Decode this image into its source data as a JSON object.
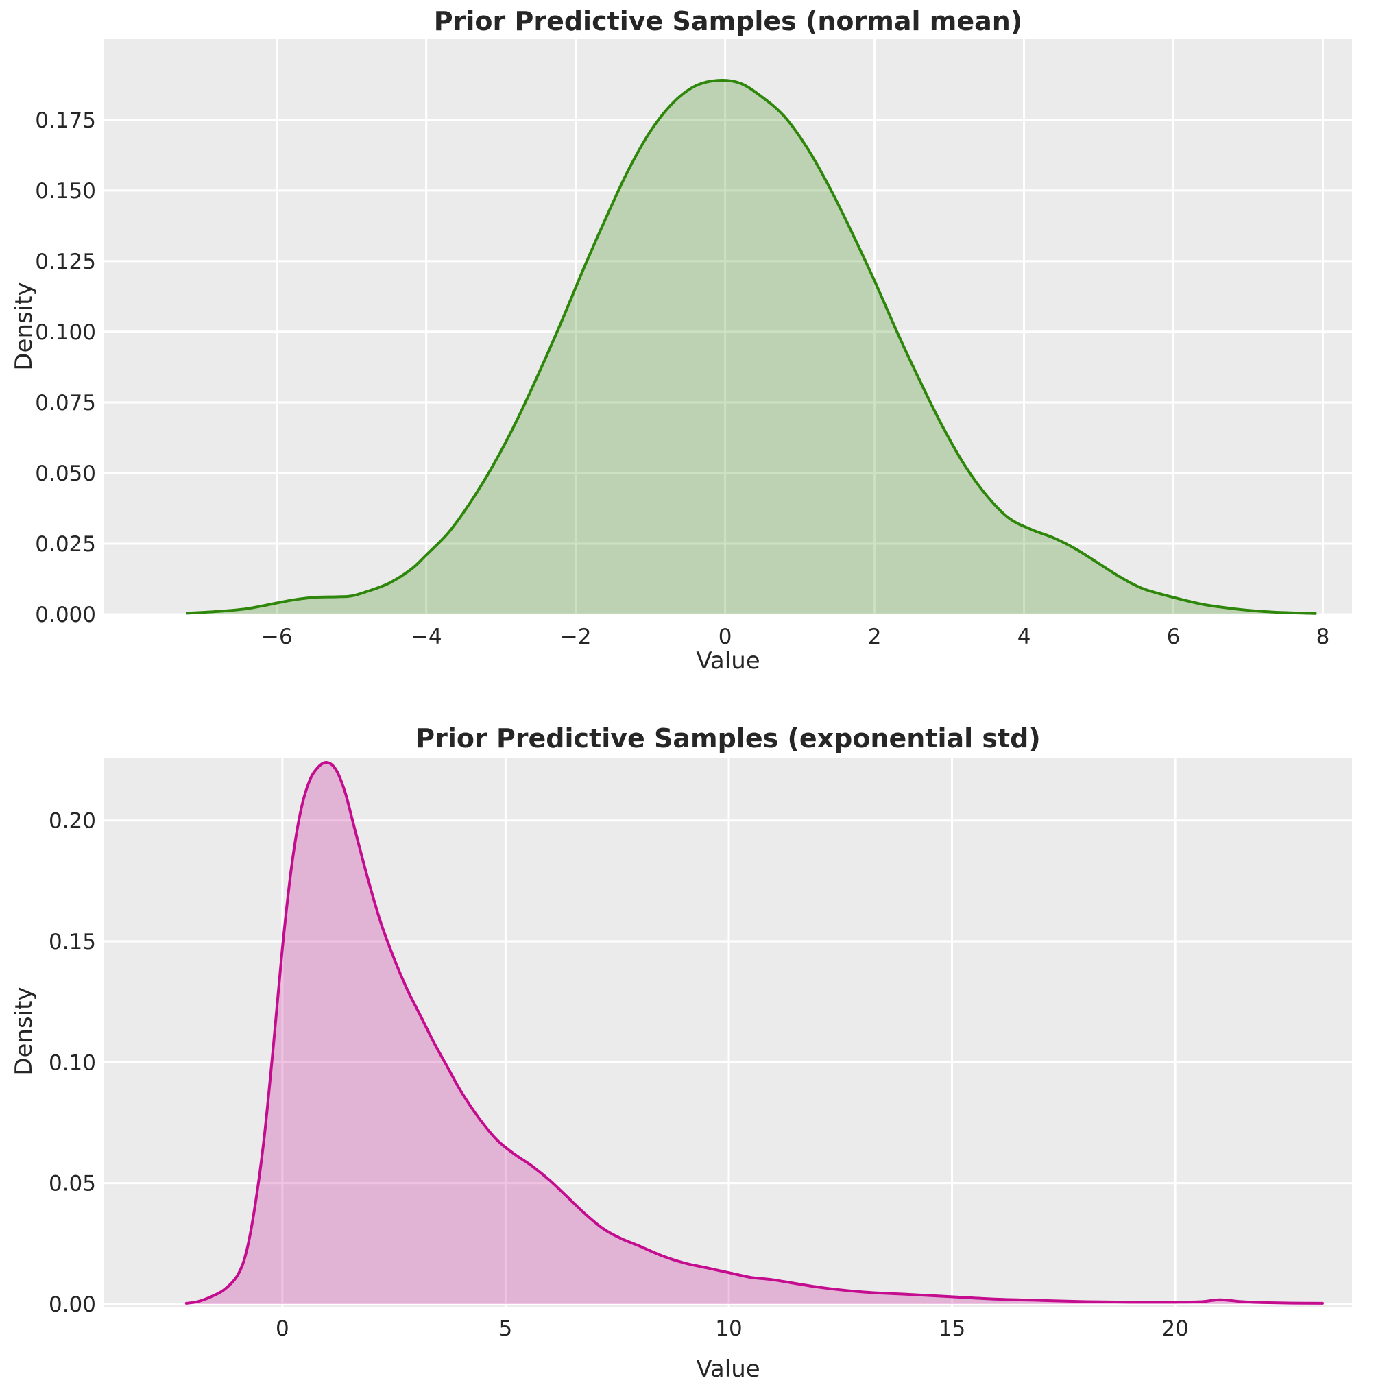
{
  "figure": {
    "background": "#ffffff",
    "axes_background": "#ebebeb",
    "grid_color": "#ffffff",
    "text_color": "#262626"
  },
  "chart_data": [
    {
      "type": "area",
      "title": "Prior Predictive Samples (normal mean)",
      "xlabel": "Value",
      "ylabel": "Density",
      "line_color": "#2e870b",
      "fill_color": "#2e870b",
      "fill_opacity": 0.25,
      "grid": true,
      "legend": false,
      "xlim": [
        -8.31,
        8.39
      ],
      "ylim": [
        0,
        0.2036
      ],
      "xticks": [
        -6,
        -4,
        -2,
        0,
        2,
        4,
        6,
        8
      ],
      "xtick_labels": [
        "−6",
        "−4",
        "−2",
        "0",
        "2",
        "4",
        "6",
        "8"
      ],
      "yticks": [
        0,
        0.025,
        0.05,
        0.075,
        0.1,
        0.125,
        0.15,
        0.175
      ],
      "ytick_labels": [
        "0.000",
        "0.025",
        "0.050",
        "0.075",
        "0.100",
        "0.125",
        "0.150",
        "0.175"
      ],
      "x": [
        -7.2,
        -6.8,
        -6.4,
        -6.0,
        -5.8,
        -5.5,
        -5.2,
        -5.0,
        -4.8,
        -4.5,
        -4.2,
        -4.0,
        -3.7,
        -3.4,
        -3.1,
        -2.8,
        -2.5,
        -2.2,
        -1.9,
        -1.6,
        -1.3,
        -1.0,
        -0.7,
        -0.4,
        -0.1,
        0.2,
        0.5,
        0.8,
        1.1,
        1.4,
        1.7,
        2.0,
        2.3,
        2.6,
        2.9,
        3.2,
        3.5,
        3.8,
        4.1,
        4.4,
        4.7,
        5.0,
        5.3,
        5.6,
        6.0,
        6.4,
        6.8,
        7.2,
        7.6,
        7.9
      ],
      "y": [
        0.0004,
        0.001,
        0.002,
        0.004,
        0.005,
        0.006,
        0.0062,
        0.0065,
        0.008,
        0.011,
        0.016,
        0.021,
        0.029,
        0.04,
        0.053,
        0.068,
        0.085,
        0.103,
        0.122,
        0.14,
        0.157,
        0.171,
        0.181,
        0.187,
        0.189,
        0.188,
        0.183,
        0.176,
        0.165,
        0.151,
        0.135,
        0.118,
        0.1,
        0.083,
        0.067,
        0.053,
        0.042,
        0.034,
        0.03,
        0.027,
        0.023,
        0.018,
        0.013,
        0.009,
        0.006,
        0.0035,
        0.002,
        0.001,
        0.0005,
        0.0003
      ]
    },
    {
      "type": "area",
      "title": "Prior Predictive Samples (exponential std)",
      "xlabel": "Value",
      "ylabel": "Density",
      "line_color": "#c30d8e",
      "fill_color": "#c30d8e",
      "fill_opacity": 0.25,
      "grid": true,
      "legend": false,
      "xlim": [
        -3.99,
        23.96
      ],
      "ylim": [
        0,
        0.226
      ],
      "xticks": [
        0,
        5,
        10,
        15,
        20
      ],
      "xtick_labels": [
        "0",
        "5",
        "10",
        "15",
        "20"
      ],
      "yticks": [
        0,
        0.05,
        0.1,
        0.15,
        0.2
      ],
      "ytick_labels": [
        "0.00",
        "0.05",
        "0.10",
        "0.15",
        "0.20"
      ],
      "x": [
        -2.15,
        -1.9,
        -1.6,
        -1.3,
        -1.0,
        -0.8,
        -0.6,
        -0.4,
        -0.2,
        0.0,
        0.2,
        0.4,
        0.6,
        0.8,
        1.0,
        1.2,
        1.4,
        1.6,
        1.9,
        2.2,
        2.5,
        2.8,
        3.1,
        3.4,
        3.7,
        4.0,
        4.4,
        4.8,
        5.2,
        5.6,
        6.0,
        6.4,
        6.8,
        7.2,
        7.6,
        8.0,
        8.5,
        9.0,
        9.5,
        10.0,
        10.5,
        11.0,
        12.0,
        13.0,
        14.0,
        15.0,
        16.0,
        17.0,
        18.0,
        19.0,
        20.0,
        20.6,
        21.0,
        21.5,
        22.0,
        22.6,
        23.3
      ],
      "y": [
        0.0003,
        0.001,
        0.003,
        0.006,
        0.012,
        0.022,
        0.042,
        0.07,
        0.107,
        0.147,
        0.18,
        0.203,
        0.216,
        0.222,
        0.224,
        0.221,
        0.212,
        0.198,
        0.177,
        0.158,
        0.143,
        0.13,
        0.119,
        0.108,
        0.098,
        0.088,
        0.077,
        0.068,
        0.062,
        0.057,
        0.051,
        0.044,
        0.037,
        0.031,
        0.027,
        0.024,
        0.02,
        0.017,
        0.015,
        0.013,
        0.011,
        0.01,
        0.007,
        0.005,
        0.004,
        0.003,
        0.002,
        0.0015,
        0.001,
        0.0008,
        0.0008,
        0.001,
        0.0018,
        0.001,
        0.0006,
        0.0004,
        0.0003
      ]
    }
  ]
}
